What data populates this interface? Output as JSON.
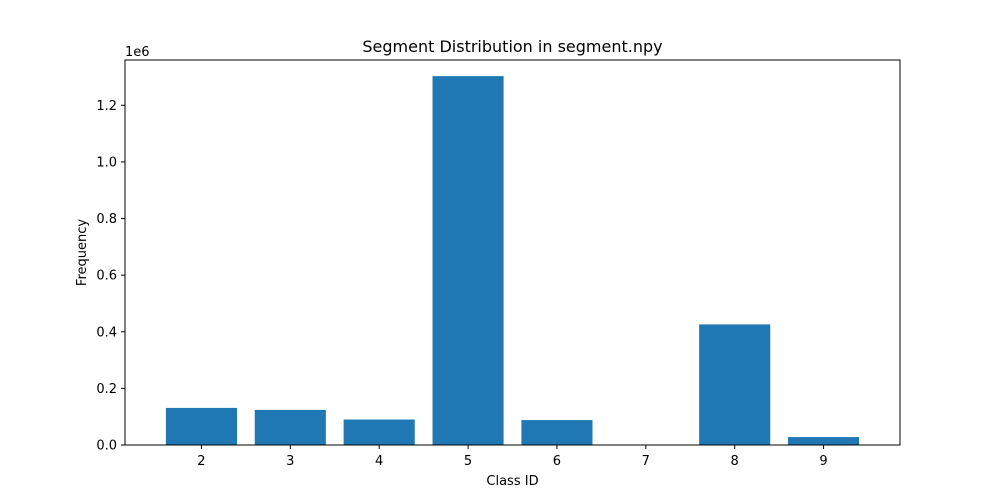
{
  "chart_data": {
    "type": "bar",
    "title": "Segment Distribution in segment.npy",
    "xlabel": "Class ID",
    "ylabel": "Frequency",
    "y_offset_label": "1e6",
    "categories": [
      "2",
      "3",
      "4",
      "5",
      "6",
      "7",
      "8",
      "9"
    ],
    "values": [
      131000,
      124000,
      90000,
      1303000,
      88000,
      0,
      426000,
      28000
    ],
    "ylim": [
      0,
      1360000
    ],
    "y_ticks": [
      0.0,
      0.2,
      0.4,
      0.6,
      0.8,
      1.0,
      1.2
    ],
    "y_tick_labels": [
      "0.0",
      "0.2",
      "0.4",
      "0.6",
      "0.8",
      "1.0",
      "1.2"
    ],
    "y_tick_scale": 1000000,
    "grid": false,
    "legend": "none",
    "bar_color": "#1f77b4"
  }
}
